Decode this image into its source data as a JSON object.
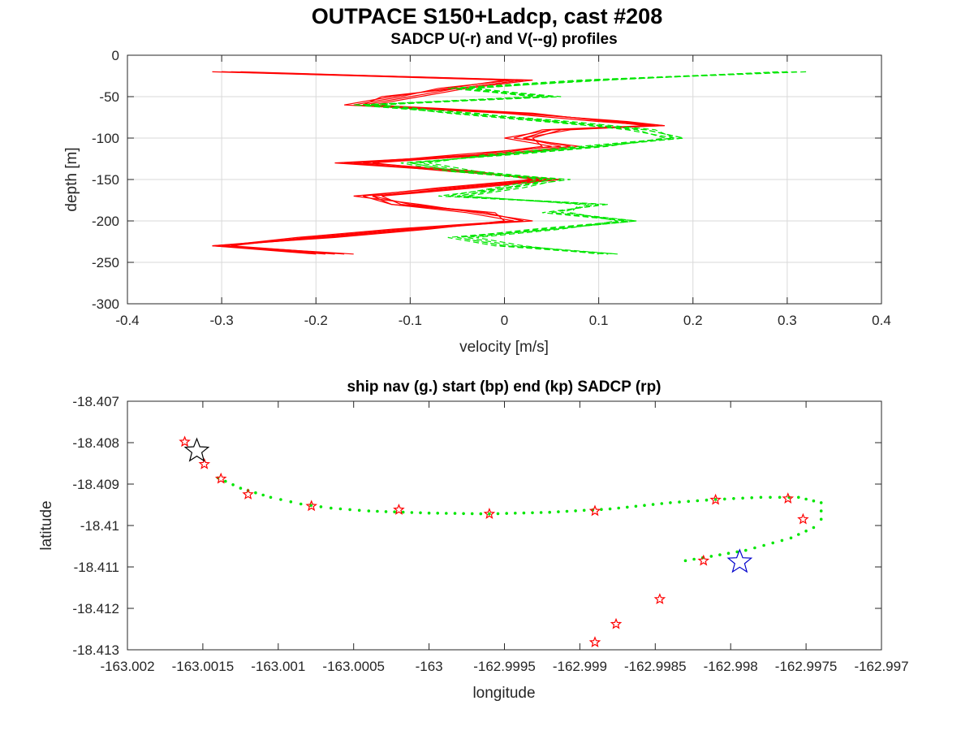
{
  "figure": {
    "title": "OUTPACE S150+Ladcp, cast #208"
  },
  "chart_data": [
    {
      "type": "line",
      "title": "SADCP U(-r) and V(--g) profiles",
      "xlabel": "velocity [m/s]",
      "ylabel": "depth [m]",
      "xlim": [
        -0.4,
        0.4
      ],
      "ylim": [
        -300,
        0
      ],
      "xticks": [
        -0.4,
        -0.3,
        -0.2,
        -0.1,
        0,
        0.1,
        0.2,
        0.3,
        0.4
      ],
      "xtick_labels": [
        "-0.4",
        "-0.3",
        "-0.2",
        "-0.1",
        "0",
        "0.1",
        "0.2",
        "0.3",
        "0.4"
      ],
      "yticks": [
        0,
        -50,
        -100,
        -150,
        -200,
        -250,
        -300
      ],
      "ytick_labels": [
        "0",
        "-50",
        "-100",
        "-150",
        "-200",
        "-250",
        "-300"
      ],
      "grid": true,
      "series": [
        {
          "color": "#ff0000",
          "dash": "solid",
          "depth": [
            -20,
            -30,
            -40,
            -50,
            -60,
            -70,
            -80,
            -85,
            -90,
            -100,
            -110,
            -120,
            -130,
            -140,
            -150,
            -160,
            -170,
            -180,
            -190,
            -200,
            -210,
            -220,
            -230,
            -240
          ],
          "profiles": [
            [
              -0.3,
              0.02,
              -0.05,
              -0.1,
              -0.15,
              0.02,
              0.12,
              0.17,
              0.05,
              0.0,
              0.05,
              -0.02,
              -0.18,
              -0.05,
              0.05,
              -0.05,
              -0.14,
              -0.1,
              -0.02,
              0.02,
              -0.1,
              -0.2,
              -0.31,
              -0.18
            ],
            [
              -0.31,
              0.0,
              -0.06,
              -0.12,
              -0.17,
              0.0,
              0.1,
              0.16,
              0.07,
              0.02,
              0.06,
              -0.05,
              -0.15,
              -0.03,
              0.03,
              -0.07,
              -0.15,
              -0.12,
              -0.04,
              0.01,
              -0.12,
              -0.22,
              -0.3,
              -0.16
            ],
            [
              -0.29,
              0.03,
              -0.04,
              -0.09,
              -0.14,
              0.03,
              0.11,
              0.15,
              0.04,
              0.01,
              0.08,
              0.0,
              -0.16,
              -0.06,
              0.06,
              -0.03,
              -0.13,
              -0.11,
              -0.01,
              0.0,
              -0.08,
              -0.18,
              -0.31,
              -0.2
            ],
            [
              -0.3,
              0.01,
              -0.07,
              -0.11,
              -0.16,
              0.01,
              0.13,
              0.17,
              0.06,
              0.03,
              0.04,
              -0.03,
              -0.17,
              -0.04,
              0.04,
              -0.06,
              -0.16,
              -0.09,
              -0.03,
              0.03,
              -0.11,
              -0.21,
              -0.29,
              -0.17
            ],
            [
              -0.28,
              0.02,
              -0.05,
              -0.13,
              -0.15,
              0.02,
              0.12,
              0.16,
              0.05,
              0.02,
              0.07,
              -0.01,
              -0.14,
              -0.05,
              0.05,
              -0.04,
              -0.14,
              -0.12,
              -0.02,
              0.02,
              -0.09,
              -0.19,
              -0.3,
              -0.19
            ]
          ]
        },
        {
          "color": "#00e600",
          "dash": "dashed",
          "depth": [
            -20,
            -30,
            -40,
            -50,
            -60,
            -70,
            -80,
            -90,
            -100,
            -110,
            -120,
            -130,
            -140,
            -150,
            -160,
            -170,
            -180,
            -190,
            -200,
            -210,
            -220,
            -230,
            -240
          ],
          "profiles": [
            [
              0.31,
              0.1,
              -0.05,
              0.05,
              -0.15,
              -0.05,
              0.05,
              0.15,
              0.19,
              0.1,
              0.0,
              -0.1,
              -0.05,
              0.05,
              0.0,
              -0.05,
              0.1,
              0.05,
              0.14,
              0.05,
              -0.05,
              0.0,
              0.12
            ],
            [
              0.3,
              0.08,
              -0.06,
              0.04,
              -0.13,
              -0.04,
              0.07,
              0.16,
              0.18,
              0.08,
              -0.02,
              -0.08,
              -0.03,
              0.06,
              0.02,
              -0.04,
              0.08,
              0.07,
              0.12,
              0.06,
              -0.03,
              0.02,
              0.1
            ],
            [
              0.29,
              0.11,
              -0.04,
              0.06,
              -0.14,
              -0.06,
              0.04,
              0.14,
              0.17,
              0.11,
              0.01,
              -0.11,
              -0.06,
              0.04,
              -0.01,
              -0.06,
              0.11,
              0.04,
              0.13,
              0.04,
              -0.06,
              -0.01,
              0.11
            ],
            [
              0.32,
              0.09,
              -0.03,
              0.05,
              -0.16,
              -0.05,
              0.06,
              0.15,
              0.19,
              0.09,
              -0.01,
              -0.09,
              -0.04,
              0.05,
              0.01,
              -0.05,
              0.09,
              0.06,
              0.14,
              0.05,
              -0.04,
              0.01,
              0.12
            ],
            [
              0.3,
              0.1,
              -0.05,
              0.03,
              -0.15,
              -0.03,
              0.05,
              0.13,
              0.18,
              0.1,
              0.0,
              -0.1,
              -0.05,
              0.07,
              0.0,
              -0.07,
              0.1,
              0.05,
              0.13,
              0.03,
              -0.05,
              0.0,
              0.11
            ]
          ]
        }
      ]
    },
    {
      "type": "scatter",
      "title": "ship nav (g.) start (bp) end (kp) SADCP (rp)",
      "xlabel": "longitude",
      "ylabel": "latitude",
      "xlim": [
        -163.002,
        -162.997
      ],
      "ylim": [
        -18.413,
        -18.407
      ],
      "xticks": [
        -163.002,
        -163.0015,
        -163.001,
        -163.0005,
        -163.0,
        -162.9995,
        -162.999,
        -162.9985,
        -162.998,
        -162.9975,
        -162.997
      ],
      "xtick_labels": [
        "-163.002",
        "-163.0015",
        "-163.001",
        "-163.0005",
        "-163",
        "-162.9995",
        "-162.999",
        "-162.9985",
        "-162.998",
        "-162.9975",
        "-162.997"
      ],
      "yticks": [
        -18.407,
        -18.408,
        -18.409,
        -18.41,
        -18.411,
        -18.412,
        -18.413
      ],
      "ytick_labels": [
        "-18.407",
        "-18.408",
        "-18.409",
        "-18.41",
        "-18.411",
        "-18.412",
        "-18.413"
      ],
      "grid": false,
      "nav_color": "#00e600",
      "nav_track": {
        "lon": [
          -163.0014,
          -163.00125,
          -163.00105,
          -163.00085,
          -163.00065,
          -163.0004,
          -163.0,
          -162.9996,
          -162.9992,
          -162.9988,
          -162.9984,
          -162.9981,
          -162.9978,
          -162.99755,
          -162.9974,
          -162.9974,
          -162.99745,
          -162.9976,
          -162.9979,
          -162.9983
        ],
        "lat": [
          -18.40885,
          -18.4091,
          -18.40932,
          -18.40948,
          -18.40958,
          -18.40965,
          -18.4097,
          -18.40972,
          -18.40968,
          -18.4096,
          -18.40945,
          -18.40937,
          -18.40932,
          -18.40932,
          -18.40945,
          -18.40985,
          -18.41005,
          -18.4103,
          -18.4106,
          -18.41085
        ]
      },
      "sadcp_points": {
        "name": "SADCP",
        "color": "#ff0000",
        "lon": [
          -163.00162,
          -163.00149,
          -163.00138,
          -163.0012,
          -163.00078,
          -163.0002,
          -162.9996,
          -162.9989,
          -162.9981,
          -162.99762,
          -162.99752,
          -162.99818,
          -162.99847,
          -162.99876,
          -162.9989
        ],
        "lat": [
          -18.40798,
          -18.40852,
          -18.40887,
          -18.40925,
          -18.40953,
          -18.40962,
          -18.40972,
          -18.40965,
          -18.40938,
          -18.40935,
          -18.40985,
          -18.41085,
          -18.41178,
          -18.41238,
          -18.41282
        ]
      },
      "start": {
        "name": "start",
        "color": "#0000cc",
        "lon": -162.99794,
        "lat": -18.41088
      },
      "end": {
        "name": "end",
        "color": "#000000",
        "lon": -163.00154,
        "lat": -18.4082
      }
    }
  ]
}
